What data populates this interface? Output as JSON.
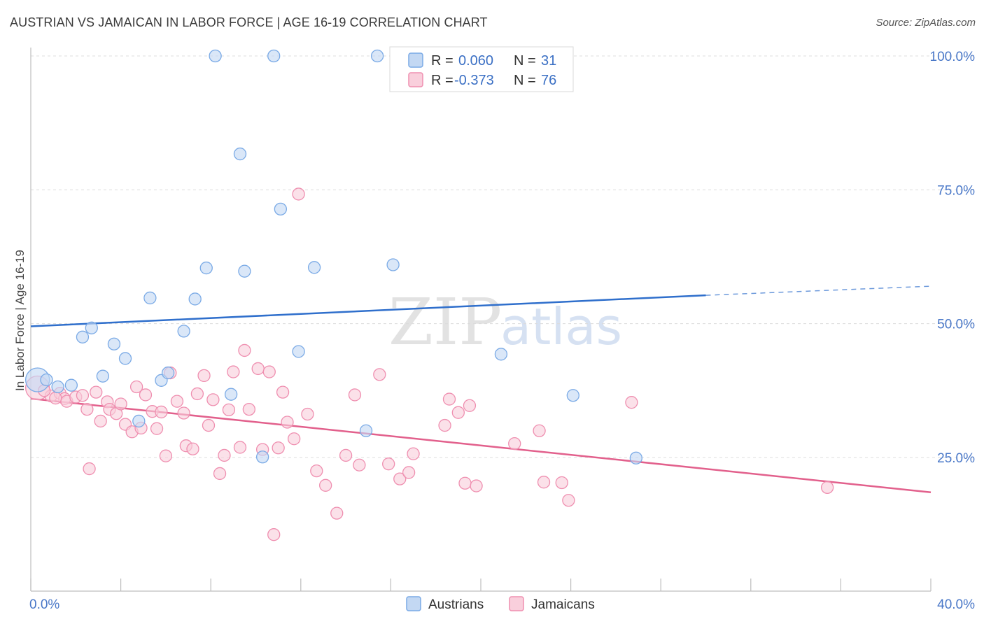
{
  "title": "AUSTRIAN VS JAMAICAN IN LABOR FORCE | AGE 16-19 CORRELATION CHART",
  "source": "Source: ZipAtlas.com",
  "watermark": {
    "zip": "ZIP",
    "atlas": "atlas"
  },
  "chart_data": {
    "type": "scatter",
    "title": "AUSTRIAN VS JAMAICAN IN LABOR FORCE | AGE 16-19 CORRELATION CHART",
    "ylabel": "In Labor Force | Age 16-19",
    "xlabel": "",
    "xlim": [
      0,
      40
    ],
    "ylim": [
      0,
      105
    ],
    "x_tick_labels": [
      "0.0%",
      "40.0%"
    ],
    "y_ticks": [
      25,
      50,
      75,
      100
    ],
    "y_tick_labels": [
      "25.0%",
      "50.0%",
      "75.0%",
      "100.0%"
    ],
    "grid": true,
    "legend": {
      "placement": "top-center",
      "entries": [
        {
          "r_label": "R =",
          "r_value": "0.060",
          "n_label": "N =",
          "n_value": "31"
        },
        {
          "r_label": "R =",
          "r_value": "-0.373",
          "n_label": "N =",
          "n_value": "76"
        }
      ]
    },
    "series": [
      {
        "name": "Austrians",
        "color": "#7aaae6",
        "fill": "#c3d8f3",
        "trend": {
          "x0": 0,
          "y0": 49.5,
          "x1": 30,
          "y1": 55.3,
          "dash_to_x": 40,
          "dash_to_y": 57.0,
          "color": "#2f6fcc"
        },
        "points": [
          {
            "x": 0.3,
            "y": 39.5,
            "big": true
          },
          {
            "x": 0.7,
            "y": 39.5
          },
          {
            "x": 1.2,
            "y": 38.2
          },
          {
            "x": 1.8,
            "y": 38.5
          },
          {
            "x": 2.3,
            "y": 47.5
          },
          {
            "x": 2.7,
            "y": 49.2
          },
          {
            "x": 3.2,
            "y": 40.2
          },
          {
            "x": 3.7,
            "y": 46.2
          },
          {
            "x": 4.2,
            "y": 43.5
          },
          {
            "x": 4.8,
            "y": 31.8
          },
          {
            "x": 5.3,
            "y": 54.8
          },
          {
            "x": 5.8,
            "y": 39.4
          },
          {
            "x": 6.1,
            "y": 40.8
          },
          {
            "x": 6.8,
            "y": 48.6
          },
          {
            "x": 7.3,
            "y": 54.6
          },
          {
            "x": 7.8,
            "y": 60.4
          },
          {
            "x": 8.2,
            "y": 100.0
          },
          {
            "x": 8.9,
            "y": 36.8
          },
          {
            "x": 9.3,
            "y": 81.7
          },
          {
            "x": 9.5,
            "y": 59.8
          },
          {
            "x": 10.3,
            "y": 25.1
          },
          {
            "x": 10.8,
            "y": 100.0
          },
          {
            "x": 11.1,
            "y": 71.4
          },
          {
            "x": 11.9,
            "y": 44.8
          },
          {
            "x": 12.6,
            "y": 60.5
          },
          {
            "x": 14.9,
            "y": 30.0
          },
          {
            "x": 15.4,
            "y": 100.0
          },
          {
            "x": 16.1,
            "y": 61.0
          },
          {
            "x": 20.9,
            "y": 44.3
          },
          {
            "x": 24.1,
            "y": 36.6
          },
          {
            "x": 26.9,
            "y": 24.9
          }
        ]
      },
      {
        "name": "Jamaicans",
        "color": "#ef8fb0",
        "fill": "#f9cfdc",
        "trend": {
          "x0": 0,
          "y0": 36.0,
          "x1": 40,
          "y1": 18.5,
          "color": "#e2608c"
        },
        "points": [
          {
            "x": 0.3,
            "y": 38.0,
            "big": true
          },
          {
            "x": 0.9,
            "y": 36.5
          },
          {
            "x": 1.3,
            "y": 37.0
          },
          {
            "x": 1.5,
            "y": 36.0
          },
          {
            "x": 1.6,
            "y": 35.5
          },
          {
            "x": 2.0,
            "y": 36.3
          },
          {
            "x": 2.3,
            "y": 36.6
          },
          {
            "x": 2.5,
            "y": 34.0
          },
          {
            "x": 2.6,
            "y": 22.9
          },
          {
            "x": 2.9,
            "y": 37.2
          },
          {
            "x": 3.1,
            "y": 31.8
          },
          {
            "x": 3.4,
            "y": 35.4
          },
          {
            "x": 3.5,
            "y": 34.0
          },
          {
            "x": 3.8,
            "y": 33.2
          },
          {
            "x": 4.0,
            "y": 35.0
          },
          {
            "x": 4.2,
            "y": 31.2
          },
          {
            "x": 4.5,
            "y": 29.8
          },
          {
            "x": 4.7,
            "y": 38.2
          },
          {
            "x": 4.9,
            "y": 30.5
          },
          {
            "x": 5.1,
            "y": 36.7
          },
          {
            "x": 5.4,
            "y": 33.6
          },
          {
            "x": 5.6,
            "y": 30.4
          },
          {
            "x": 5.8,
            "y": 33.5
          },
          {
            "x": 6.0,
            "y": 25.3
          },
          {
            "x": 6.2,
            "y": 40.8
          },
          {
            "x": 6.5,
            "y": 35.5
          },
          {
            "x": 6.8,
            "y": 33.3
          },
          {
            "x": 6.9,
            "y": 27.2
          },
          {
            "x": 7.2,
            "y": 26.6
          },
          {
            "x": 7.4,
            "y": 36.9
          },
          {
            "x": 7.7,
            "y": 40.3
          },
          {
            "x": 7.9,
            "y": 31.0
          },
          {
            "x": 8.1,
            "y": 35.8
          },
          {
            "x": 8.4,
            "y": 22.0
          },
          {
            "x": 8.6,
            "y": 25.4
          },
          {
            "x": 8.8,
            "y": 33.9
          },
          {
            "x": 9.0,
            "y": 41.0
          },
          {
            "x": 9.3,
            "y": 26.9
          },
          {
            "x": 9.5,
            "y": 45.0
          },
          {
            "x": 9.7,
            "y": 34.0
          },
          {
            "x": 10.1,
            "y": 41.6
          },
          {
            "x": 10.3,
            "y": 26.5
          },
          {
            "x": 10.6,
            "y": 41.0
          },
          {
            "x": 10.8,
            "y": 10.6
          },
          {
            "x": 11.0,
            "y": 26.8
          },
          {
            "x": 11.2,
            "y": 37.2
          },
          {
            "x": 11.4,
            "y": 31.6
          },
          {
            "x": 11.7,
            "y": 28.5
          },
          {
            "x": 11.9,
            "y": 74.2
          },
          {
            "x": 12.3,
            "y": 33.1
          },
          {
            "x": 12.7,
            "y": 22.5
          },
          {
            "x": 13.1,
            "y": 19.8
          },
          {
            "x": 13.6,
            "y": 14.6
          },
          {
            "x": 14.0,
            "y": 25.4
          },
          {
            "x": 14.4,
            "y": 36.7
          },
          {
            "x": 14.6,
            "y": 23.6
          },
          {
            "x": 15.5,
            "y": 40.5
          },
          {
            "x": 15.9,
            "y": 23.8
          },
          {
            "x": 16.4,
            "y": 21.0
          },
          {
            "x": 16.8,
            "y": 22.2
          },
          {
            "x": 17.0,
            "y": 25.7
          },
          {
            "x": 18.4,
            "y": 31.0
          },
          {
            "x": 18.6,
            "y": 35.9
          },
          {
            "x": 19.0,
            "y": 33.4
          },
          {
            "x": 19.3,
            "y": 20.2
          },
          {
            "x": 19.5,
            "y": 34.7
          },
          {
            "x": 19.8,
            "y": 19.7
          },
          {
            "x": 21.5,
            "y": 27.6
          },
          {
            "x": 22.6,
            "y": 30.0
          },
          {
            "x": 22.8,
            "y": 20.4
          },
          {
            "x": 23.6,
            "y": 20.3
          },
          {
            "x": 23.9,
            "y": 17.0
          },
          {
            "x": 26.7,
            "y": 35.3
          },
          {
            "x": 35.4,
            "y": 19.4
          },
          {
            "x": 0.6,
            "y": 37.5
          },
          {
            "x": 1.1,
            "y": 36.1
          }
        ]
      }
    ]
  }
}
